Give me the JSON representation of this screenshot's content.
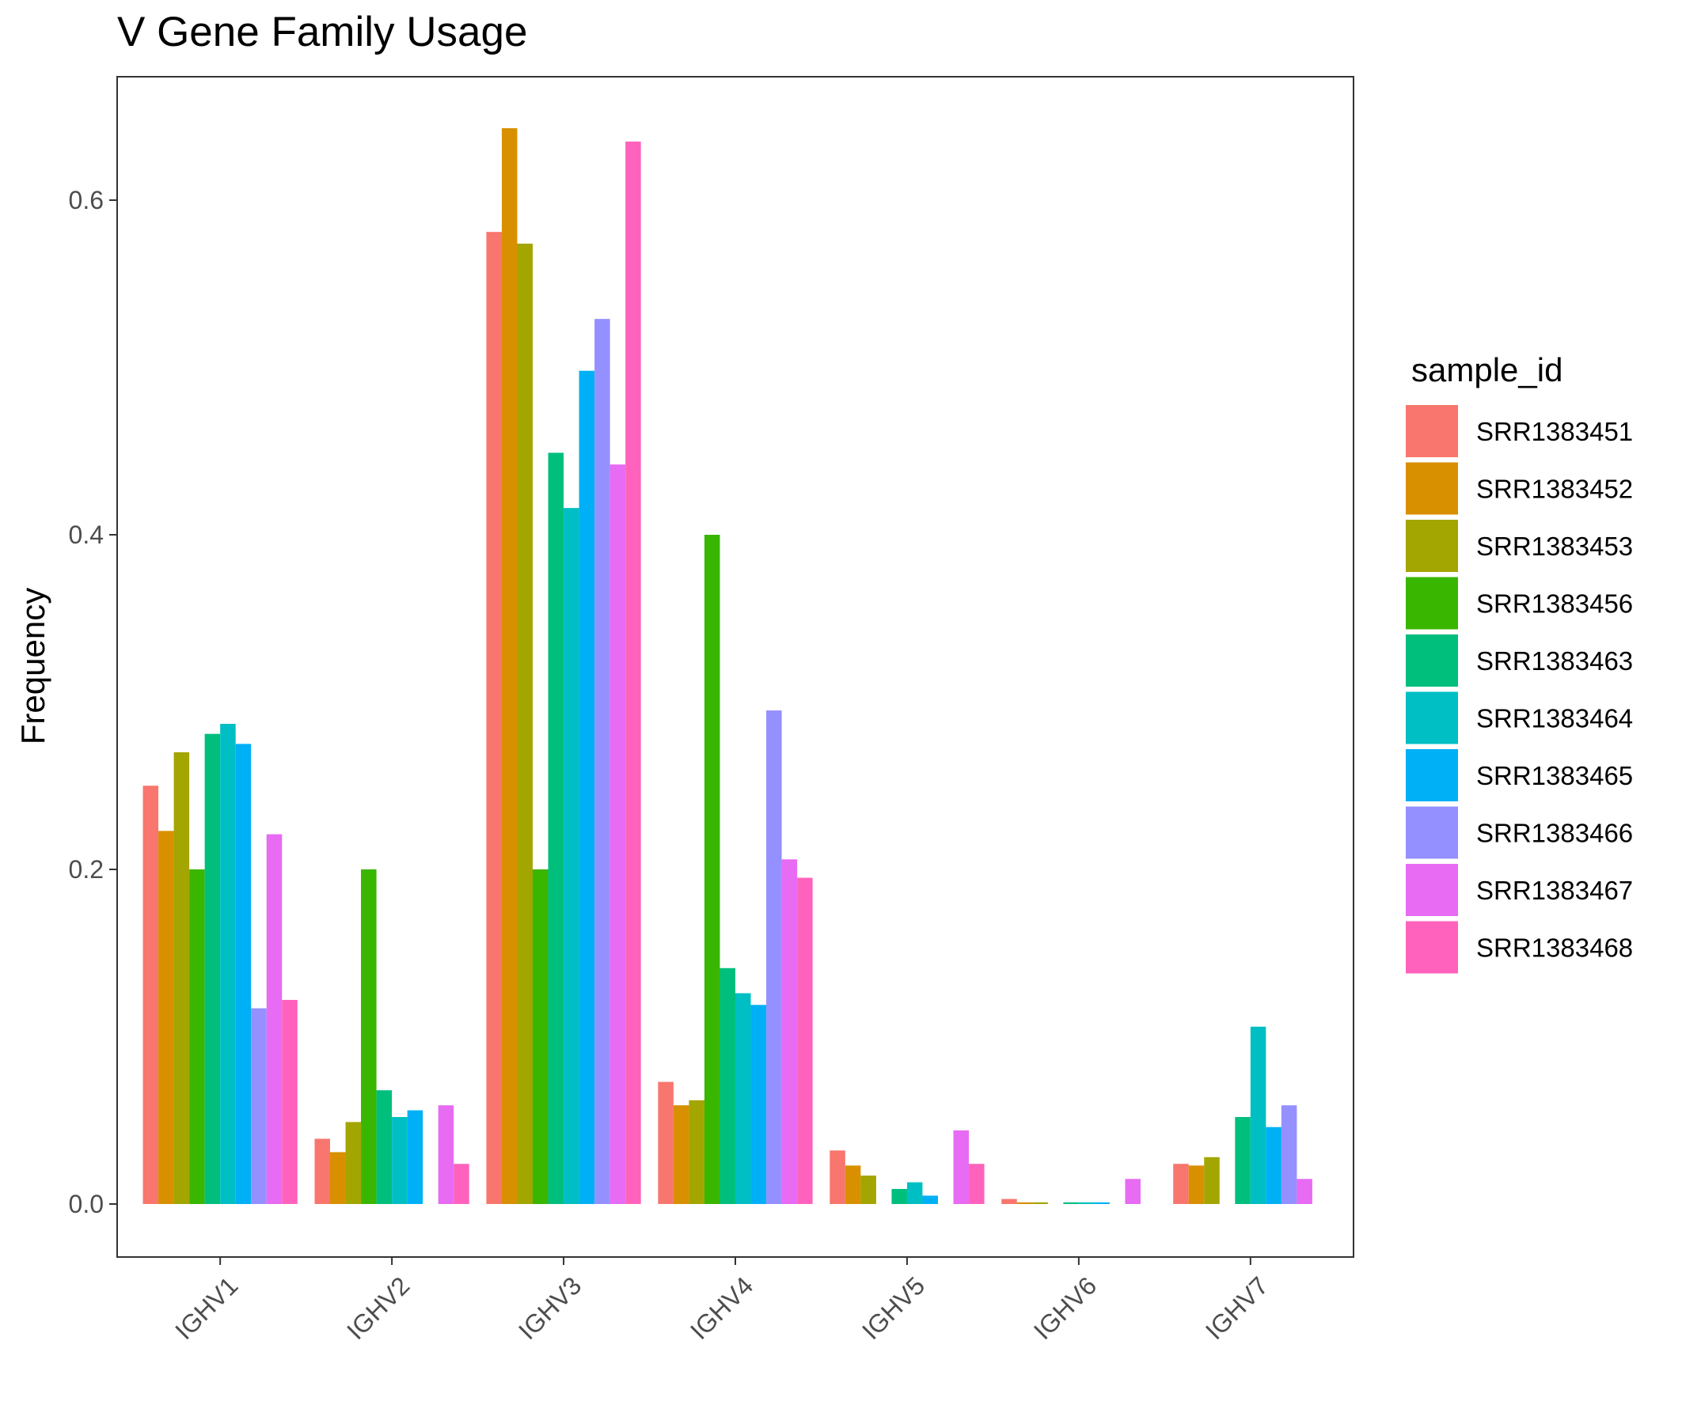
{
  "chart_data": {
    "type": "bar",
    "title": "V Gene Family Usage",
    "xlabel": "",
    "ylabel": "Frequency",
    "ylim": [
      -0.031,
      0.675
    ],
    "yticks": [
      "0.0",
      "0.2",
      "0.4",
      "0.6"
    ],
    "ytick_values": [
      0.0,
      0.2,
      0.4,
      0.6
    ],
    "grid": false,
    "legend_position": "right",
    "legend_title": "sample_id",
    "categories": [
      "IGHV1",
      "IGHV2",
      "IGHV3",
      "IGHV4",
      "IGHV5",
      "IGHV6",
      "IGHV7"
    ],
    "series": [
      {
        "name": "SRR1383451",
        "color": "#F8766D",
        "values": [
          0.25,
          0.039,
          0.581,
          0.073,
          0.032,
          0.003,
          0.024
        ]
      },
      {
        "name": "SRR1383452",
        "color": "#D89000",
        "values": [
          0.223,
          0.031,
          0.643,
          0.059,
          0.023,
          0.001,
          0.023
        ]
      },
      {
        "name": "SRR1383453",
        "color": "#A3A500",
        "values": [
          0.27,
          0.049,
          0.574,
          0.062,
          0.017,
          0.001,
          0.028
        ]
      },
      {
        "name": "SRR1383456",
        "color": "#39B600",
        "values": [
          0.2,
          0.2,
          0.2,
          0.4,
          0.0,
          0.0,
          0.0
        ]
      },
      {
        "name": "SRR1383463",
        "color": "#00BF7D",
        "values": [
          0.281,
          0.068,
          0.449,
          0.141,
          0.009,
          0.001,
          0.052
        ]
      },
      {
        "name": "SRR1383464",
        "color": "#00BFC4",
        "values": [
          0.287,
          0.052,
          0.416,
          0.126,
          0.013,
          0.001,
          0.106
        ]
      },
      {
        "name": "SRR1383465",
        "color": "#00B0F6",
        "values": [
          0.275,
          0.056,
          0.498,
          0.119,
          0.005,
          0.001,
          0.046
        ]
      },
      {
        "name": "SRR1383466",
        "color": "#9590FF",
        "values": [
          0.117,
          0.0,
          0.529,
          0.295,
          0.0,
          0.0,
          0.059
        ]
      },
      {
        "name": "SRR1383467",
        "color": "#E76BF3",
        "values": [
          0.221,
          0.059,
          0.442,
          0.206,
          0.044,
          0.015,
          0.015
        ]
      },
      {
        "name": "SRR1383468",
        "color": "#FF62BC",
        "values": [
          0.122,
          0.024,
          0.635,
          0.195,
          0.024,
          0.0,
          0.0
        ]
      }
    ]
  }
}
